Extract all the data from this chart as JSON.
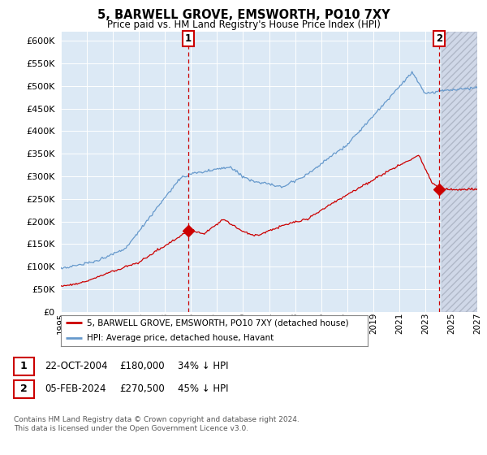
{
  "title": "5, BARWELL GROVE, EMSWORTH, PO10 7XY",
  "subtitle": "Price paid vs. HM Land Registry's House Price Index (HPI)",
  "legend_label_red": "5, BARWELL GROVE, EMSWORTH, PO10 7XY (detached house)",
  "legend_label_blue": "HPI: Average price, detached house, Havant",
  "annotation1_date": "22-OCT-2004",
  "annotation1_price": "£180,000",
  "annotation1_hpi": "34% ↓ HPI",
  "annotation2_date": "05-FEB-2024",
  "annotation2_price": "£270,500",
  "annotation2_hpi": "45% ↓ HPI",
  "footer": "Contains HM Land Registry data © Crown copyright and database right 2024.\nThis data is licensed under the Open Government Licence v3.0.",
  "ylim": [
    0,
    620000
  ],
  "yticks": [
    0,
    50000,
    100000,
    150000,
    200000,
    250000,
    300000,
    350000,
    400000,
    450000,
    500000,
    550000,
    600000
  ],
  "xmin": 1995,
  "xmax": 2027,
  "background_color": "#ffffff",
  "plot_bg_color": "#dce9f5",
  "grid_color": "#ffffff",
  "red_color": "#cc0000",
  "blue_color": "#6699cc",
  "hatch_start": 2024.25,
  "ann1_x": 2004.79,
  "ann1_y": 180000,
  "ann2_x": 2024.08,
  "ann2_y": 270500
}
